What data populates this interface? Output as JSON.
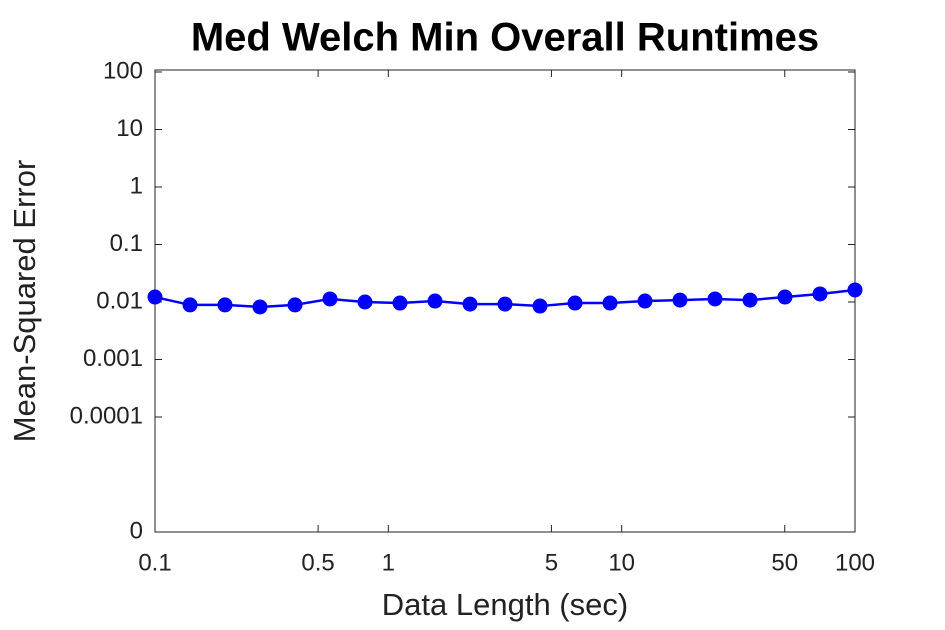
{
  "chart_data": {
    "type": "line",
    "title": "Med Welch Min Overall Runtimes",
    "xlabel": "Data Length (sec)",
    "ylabel": "Mean-Squared Error",
    "xscale": "log",
    "yscale": "log",
    "x": [
      0.1,
      0.1413,
      0.1995,
      0.2818,
      0.3981,
      0.5623,
      0.7943,
      1.122,
      1.585,
      2.239,
      3.162,
      4.467,
      6.31,
      8.913,
      12.59,
      17.78,
      25.12,
      35.48,
      50.12,
      70.79,
      100
    ],
    "series": [
      {
        "name": "Med Welch Min",
        "color": "#0000ff",
        "values": [
          0.0122,
          0.0089,
          0.0089,
          0.0082,
          0.0089,
          0.0113,
          0.01,
          0.0096,
          0.0104,
          0.0092,
          0.0092,
          0.0085,
          0.0096,
          0.0096,
          0.0104,
          0.0108,
          0.0113,
          0.0108,
          0.0122,
          0.0138,
          0.0162
        ]
      }
    ],
    "xlim": [
      0.1,
      100
    ],
    "xticks": [
      0.1,
      0.5,
      1,
      5,
      10,
      50,
      100
    ],
    "ylim": [
      1e-06,
      100
    ],
    "yticks": [
      {
        "value": 1e-06,
        "label": "0"
      },
      0.0001,
      0.001,
      0.01,
      0.1,
      1,
      10,
      100
    ]
  }
}
